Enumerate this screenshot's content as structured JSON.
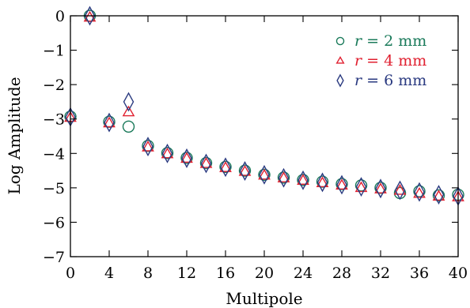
{
  "chart_data": {
    "type": "scatter",
    "xlabel": "Multipole",
    "ylabel": "Log Amplitude",
    "xlim": [
      0,
      40
    ],
    "ylim": [
      -7,
      0
    ],
    "xticks": [
      0,
      4,
      8,
      12,
      16,
      20,
      24,
      28,
      32,
      36,
      40
    ],
    "yticks": [
      0,
      -1,
      -2,
      -3,
      -4,
      -5,
      -6,
      -7
    ],
    "xtick_labels": [
      "0",
      "4",
      "8",
      "12",
      "16",
      "20",
      "24",
      "28",
      "32",
      "36",
      "40"
    ],
    "ytick_labels": [
      "0",
      "−1",
      "−2",
      "−3",
      "−4",
      "−5",
      "−6",
      "−7"
    ],
    "grid": false,
    "legend_position": "top-right",
    "x": [
      0,
      2,
      4,
      6,
      8,
      10,
      12,
      14,
      16,
      18,
      20,
      22,
      24,
      26,
      28,
      30,
      32,
      34,
      36,
      38,
      40
    ],
    "series": [
      {
        "name": "r = 2 mm",
        "marker": "circle",
        "color": "#1a7a5a",
        "values": [
          -2.93,
          0.0,
          -3.08,
          -3.22,
          -3.78,
          -3.99,
          -4.13,
          -4.28,
          -4.39,
          -4.5,
          -4.62,
          -4.7,
          -4.77,
          -4.82,
          -4.89,
          -4.93,
          -5.0,
          -5.15,
          -5.1,
          -5.22,
          -5.2
        ]
      },
      {
        "name": "r = 4 mm",
        "marker": "triangle",
        "color": "#e02030",
        "values": [
          -2.96,
          -0.05,
          -3.12,
          -2.8,
          -3.82,
          -4.02,
          -4.15,
          -4.3,
          -4.42,
          -4.53,
          -4.64,
          -4.72,
          -4.79,
          -4.86,
          -4.93,
          -5.0,
          -5.04,
          -5.08,
          -5.17,
          -5.25,
          -5.27
        ]
      },
      {
        "name": "r = 6 mm",
        "marker": "diamond",
        "color": "#2a3a80",
        "values": [
          -2.94,
          0.0,
          -3.1,
          -2.5,
          -3.8,
          -4.0,
          -4.14,
          -4.29,
          -4.4,
          -4.51,
          -4.62,
          -4.71,
          -4.78,
          -4.84,
          -4.91,
          -4.97,
          -5.02,
          -5.07,
          -5.12,
          -5.2,
          -5.24
        ]
      }
    ],
    "legend": [
      {
        "symbol": "○",
        "label_var": "r",
        "label_rest": " = 2 mm",
        "color": "#1a7a5a"
      },
      {
        "symbol": "▵",
        "label_var": "r",
        "label_rest": " = 4 mm",
        "color": "#e02030"
      },
      {
        "symbol": "◊",
        "label_var": "r",
        "label_rest": " = 6 mm",
        "color": "#2a3a80"
      }
    ]
  }
}
